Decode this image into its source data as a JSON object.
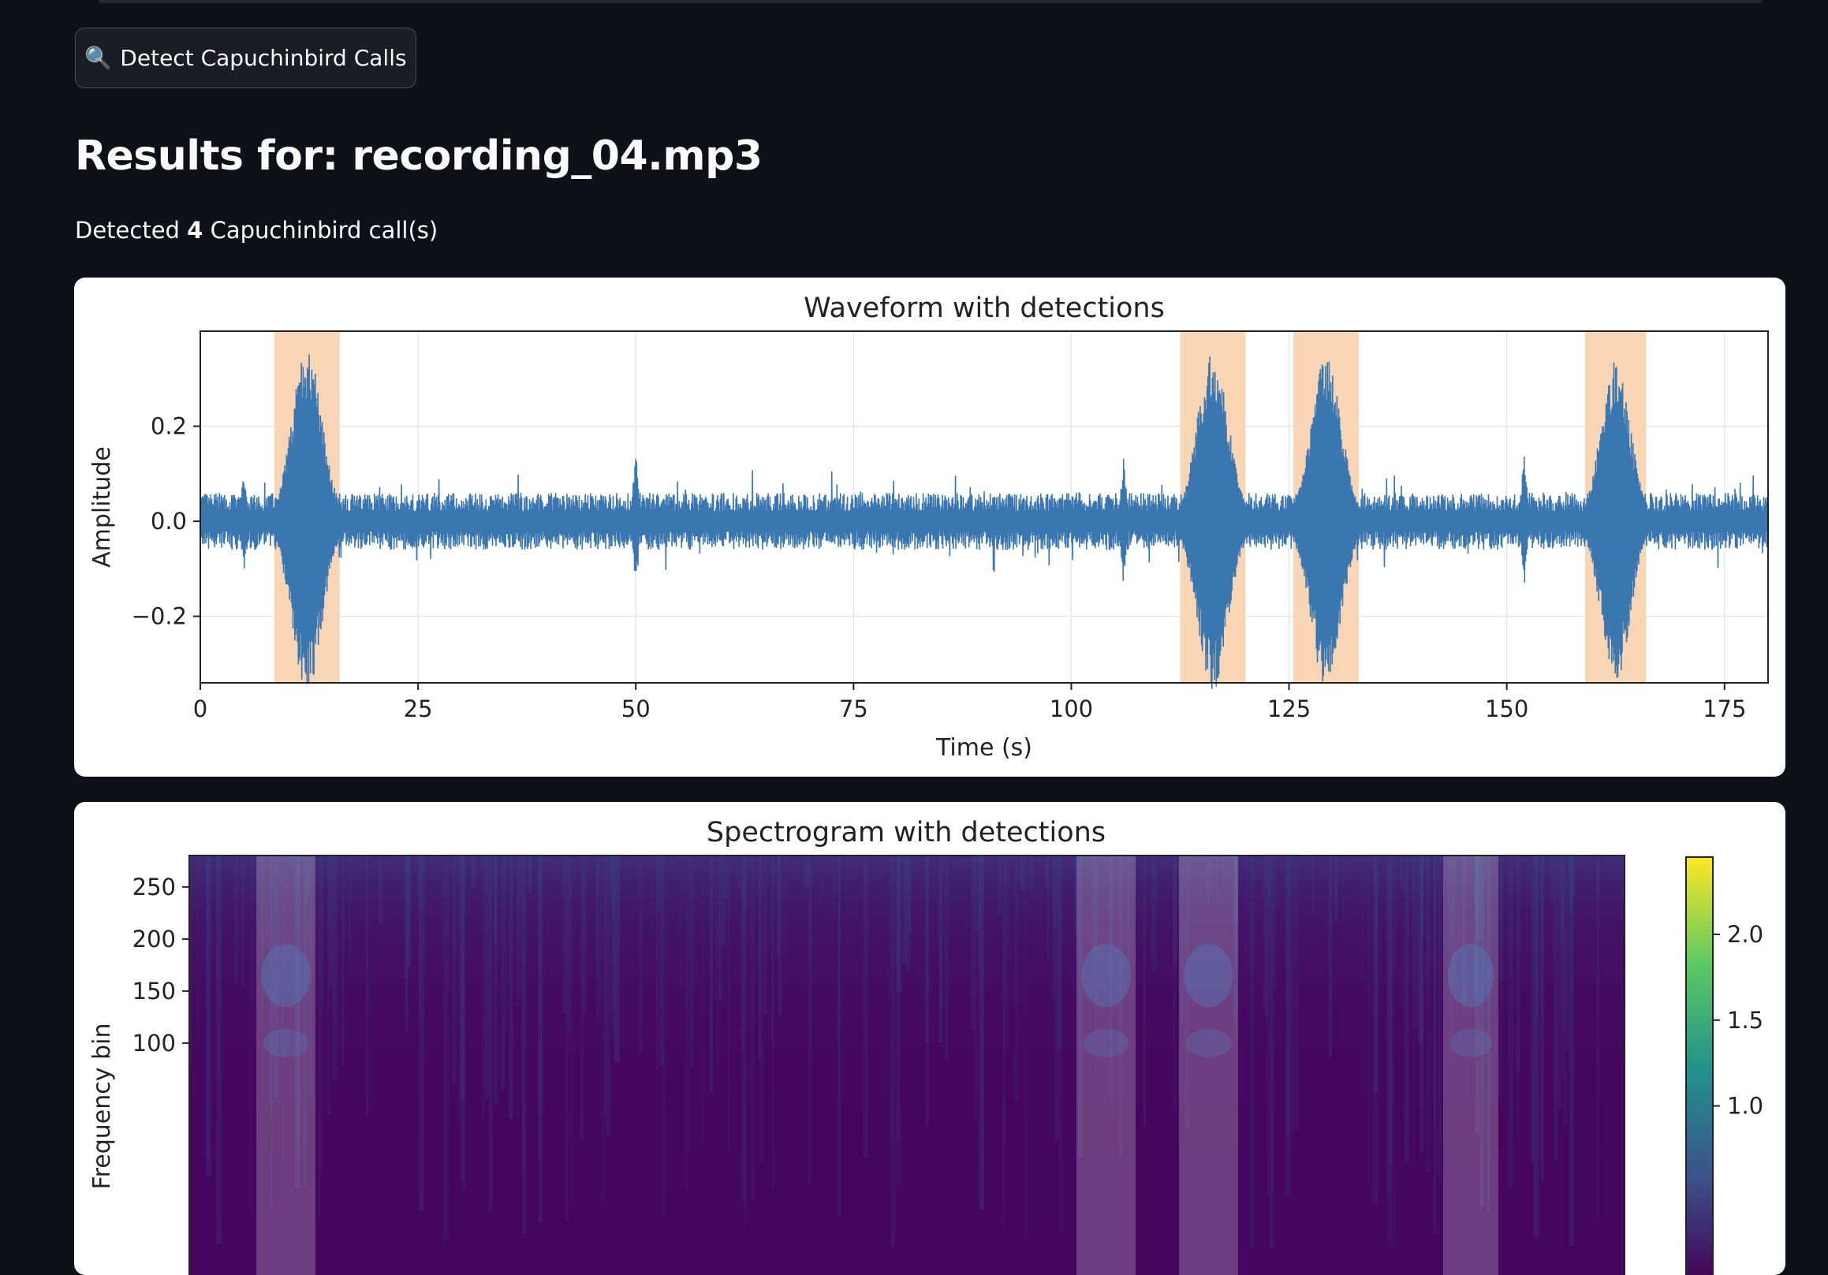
{
  "detect_button": {
    "label": "Detect Capuchinbird Calls",
    "icon": "magnifier-icon"
  },
  "results": {
    "title": "Results for: recording_04.mp3",
    "detected_prefix": "Detected",
    "detected_count": "4",
    "detected_suffix": "Capuchinbird call(s)"
  },
  "colors": {
    "page_background": "#0e1117",
    "waveform": "#3a76af",
    "detection_band": "#f7d5b5",
    "spectrogram_base": "#440154",
    "detection_overlay": "#ffffff"
  },
  "chart_data": [
    {
      "type": "line",
      "title": "Waveform with detections",
      "xlabel": "Time (s)",
      "ylabel": "Amplitude",
      "xlim": [
        0,
        180
      ],
      "ylim": [
        -0.34,
        0.4
      ],
      "grid": true,
      "x_ticks": [
        0,
        25,
        50,
        75,
        100,
        125,
        150,
        175
      ],
      "x_tick_labels": [
        "0",
        "25",
        "50",
        "75",
        "100",
        "125",
        "150",
        "175"
      ],
      "y_ticks": [
        -0.2,
        0.0,
        0.2
      ],
      "y_tick_labels": [
        "−0.2",
        "0.0",
        "0.2"
      ],
      "detections": [
        {
          "start": 8.5,
          "end": 16.0,
          "peak": 0.36
        },
        {
          "start": 112.5,
          "end": 120.0,
          "peak": 0.36
        },
        {
          "start": 125.5,
          "end": 133.0,
          "peak": 0.35
        },
        {
          "start": 159.0,
          "end": 166.0,
          "peak": 0.34
        }
      ],
      "series_envelope": {
        "baseline_amplitude": 0.06,
        "notable_spikes": [
          {
            "x": 5,
            "y": 0.11
          },
          {
            "x": 50,
            "y": 0.16
          },
          {
            "x": 106,
            "y": 0.14
          },
          {
            "x": 152,
            "y": 0.15
          }
        ]
      }
    },
    {
      "type": "heatmap",
      "title": "Spectrogram with detections",
      "ylabel": "Frequency bin",
      "ylim": [
        0,
        256
      ],
      "y_ticks": [
        100,
        150,
        200,
        250
      ],
      "y_tick_labels": [
        "100",
        "150",
        "200",
        "250"
      ],
      "colorscale": "viridis",
      "colorbar": {
        "ticks": [
          1.0,
          1.5,
          2.0
        ],
        "tick_labels": [
          "1.0",
          "1.5",
          "2.0"
        ],
        "range": [
          0,
          2.45
        ]
      },
      "detections": [
        {
          "start": 8.5,
          "end": 16.0
        },
        {
          "start": 112.5,
          "end": 120.0
        },
        {
          "start": 125.5,
          "end": 133.0
        },
        {
          "start": 159.0,
          "end": 166.0
        }
      ]
    }
  ]
}
